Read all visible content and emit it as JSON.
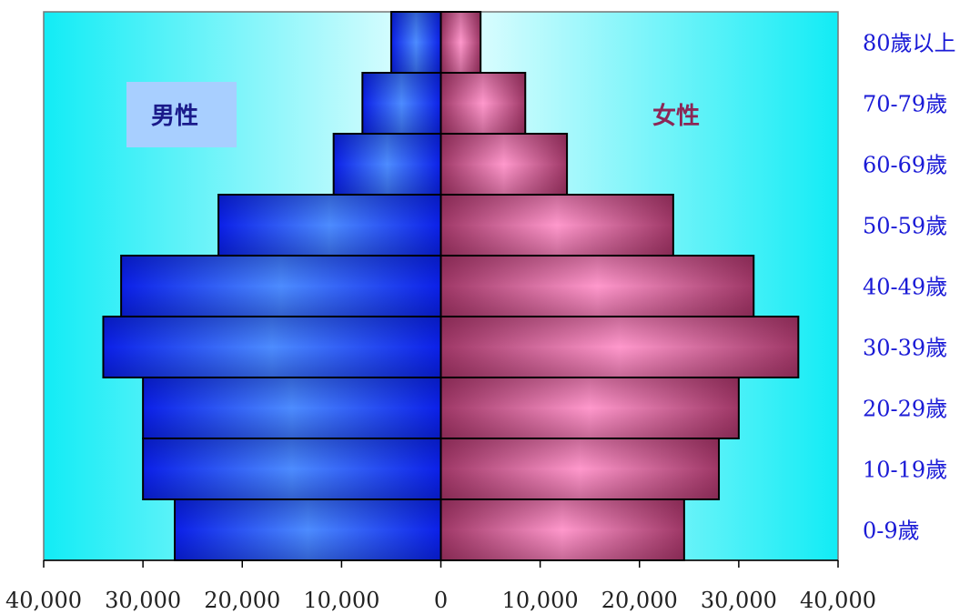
{
  "chart_data": {
    "type": "bar",
    "orientation": "horizontal",
    "subtype": "population-pyramid",
    "categories": [
      "0-9歲",
      "10-19歲",
      "20-29歲",
      "30-39歲",
      "40-49歲",
      "50-59歲",
      "60-69歲",
      "70-79歲",
      "80歲以上"
    ],
    "series": [
      {
        "name": "男性",
        "values": [
          26800,
          30000,
          30000,
          34000,
          32200,
          22400,
          10800,
          7900,
          5000
        ],
        "color": "#1f3dff"
      },
      {
        "name": "女性",
        "values": [
          24500,
          28000,
          30000,
          36000,
          31500,
          23400,
          12700,
          8500,
          4000
        ],
        "color": "#b24a7a"
      }
    ],
    "x_ticks": [
      "40,000",
      "30,000",
      "20,000",
      "10,000",
      "0",
      "10,000",
      "20,000",
      "30,000",
      "40,000"
    ],
    "xlim": [
      -40000,
      40000
    ],
    "grid": false,
    "background_colors": [
      "#11eaf4",
      "#f2ffff"
    ]
  }
}
